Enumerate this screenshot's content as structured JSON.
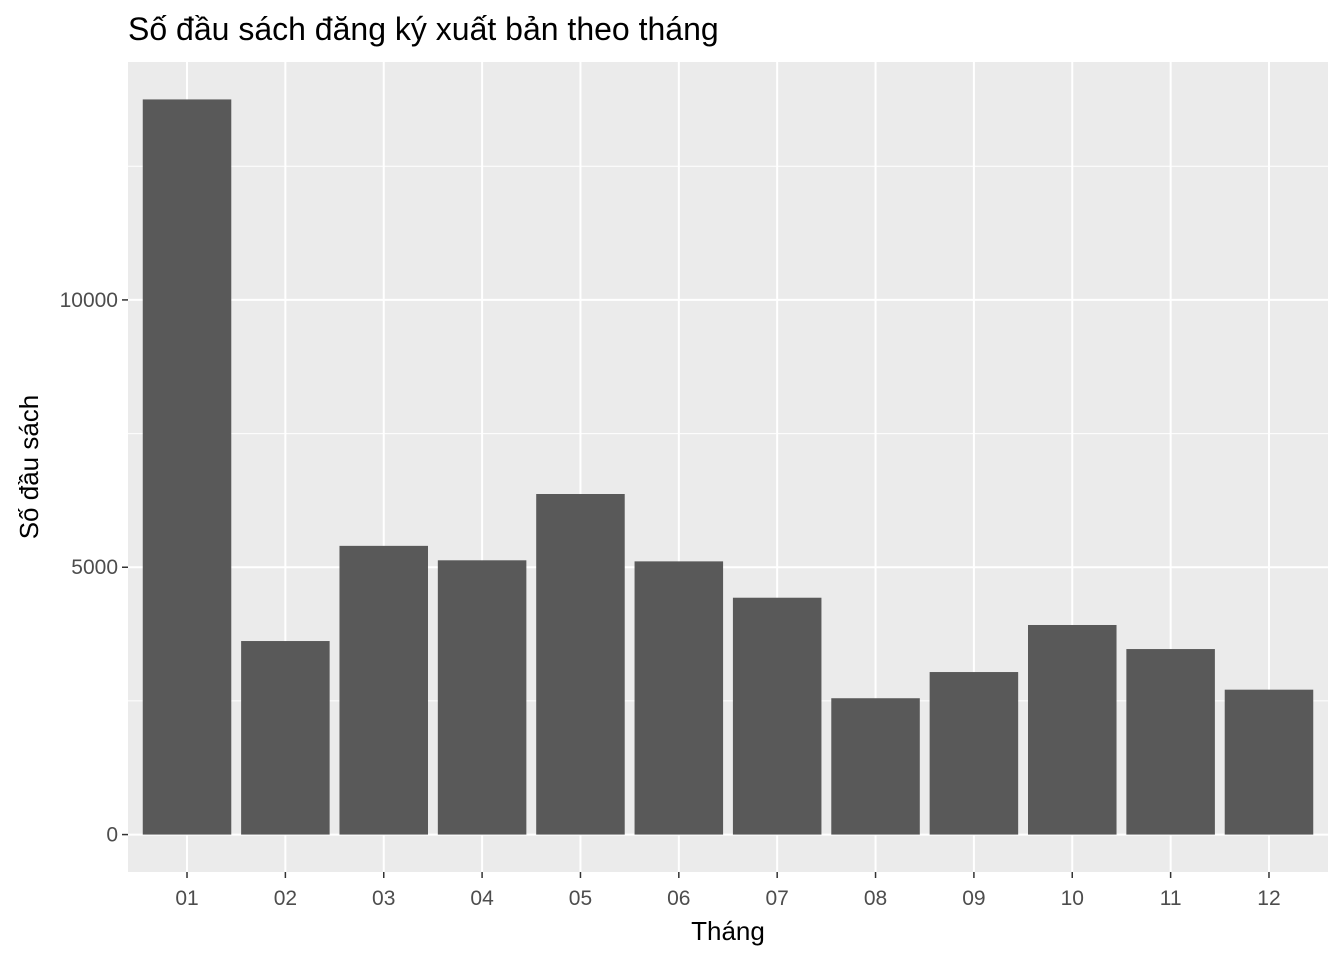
{
  "chart_data": {
    "type": "bar",
    "title": "Số đầu sách đăng ký xuất bản theo tháng",
    "xlabel": "Tháng",
    "ylabel": "Số đầu sách",
    "categories": [
      "01",
      "02",
      "03",
      "04",
      "05",
      "06",
      "07",
      "08",
      "09",
      "10",
      "11",
      "12"
    ],
    "values": [
      13750,
      3620,
      5400,
      5130,
      6370,
      5110,
      4430,
      2550,
      3040,
      3920,
      3470,
      2710
    ],
    "ylim": [
      -700,
      14450
    ],
    "yticks": [
      0,
      5000,
      10000
    ],
    "grid": true,
    "legend": "none",
    "colors": {
      "bar": "#595959",
      "panel": "#ebebeb",
      "grid": "#ffffff",
      "tick_text": "#4d4d4d"
    }
  }
}
